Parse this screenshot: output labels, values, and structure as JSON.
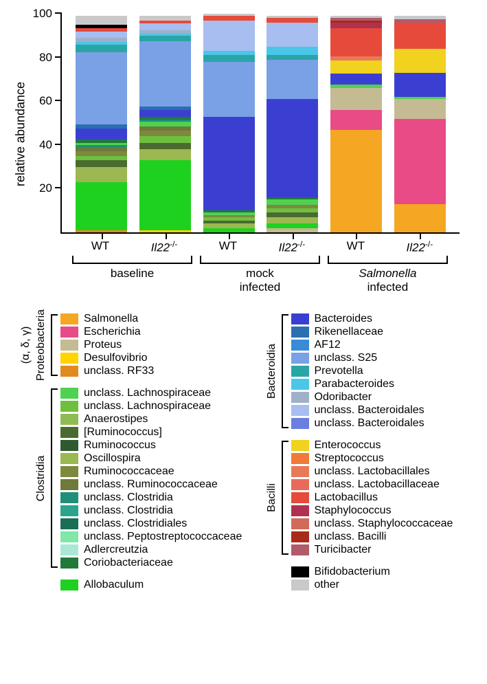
{
  "chart": {
    "type": "stacked-bar",
    "ylabel": "relative abundance",
    "ylim": [
      0,
      100
    ],
    "yticks": [
      20,
      40,
      60,
      80,
      100
    ],
    "background_color": "#ffffff",
    "bar_width_pct": 13.5,
    "axis_color": "#000000",
    "label_fontsize": 18,
    "tick_fontsize": 17,
    "columns": [
      {
        "label_html": "WT",
        "group": "baseline"
      },
      {
        "label_html": "<i>Il22</i><sup>-/-</sup>",
        "group": "baseline"
      },
      {
        "label_html": "WT",
        "group": "mock infected"
      },
      {
        "label_html": "<i>Il22</i><sup>-/-</sup>",
        "group": "mock infected"
      },
      {
        "label_html": "WT",
        "group": "Salmonella infected"
      },
      {
        "label_html": "<i>Il22</i><sup>-/-</sup>",
        "group": "Salmonella infected"
      }
    ],
    "groups": [
      {
        "label_html": "baseline",
        "from": 0,
        "to": 1
      },
      {
        "label_html": "mock<br>infected",
        "from": 2,
        "to": 3
      },
      {
        "label_html": "<i>Salmonella</i><br>infected",
        "from": 4,
        "to": 5
      }
    ],
    "taxa": {
      "Salmonella": "#f5a623",
      "Escherichia": "#e94b86",
      "Proteus": "#c4bb93",
      "Desulfovibrio": "#ffd400",
      "unclass_RF33": "#e38a1e",
      "unclass_Lachnospiraceae1": "#4fd24f",
      "unclass_Lachnospiraceae2": "#6fbf3f",
      "Anaerostipes": "#8fbc52",
      "Ruminococcus_b": "#4a6b2f",
      "Ruminococcus": "#2f5a2f",
      "Oscillospira": "#9bb851",
      "Ruminococcaceae": "#7d8a3e",
      "unclass_Ruminococcaceae": "#6e7a3a",
      "unclass_Clostridia1": "#1f8f7a",
      "unclass_Clostridia2": "#2aa58b",
      "unclass_Clostridiales": "#1a6e55",
      "unclass_Peptostreptococcaceae": "#7fe8a8",
      "Adlercreutzia": "#a8e8d4",
      "Coriobacteriaceae": "#1f7a3a",
      "Allobaculum": "#1fd11f",
      "Bacteroides": "#3b3fd1",
      "Rikenellaceae": "#2a6fb0",
      "AF12": "#3a8bd6",
      "unclass_S25": "#7aa0e6",
      "Prevotella": "#2aa5a5",
      "Parabacteroides": "#4ac6e8",
      "Odoribacter": "#9fb0c9",
      "unclass_Bacteroidales1": "#a8bdf0",
      "unclass_Bacteroidales2": "#6a7fe0",
      "Enterococcus": "#f0d21f",
      "Streptococcus": "#f07a3a",
      "unclass_Lactobacillales": "#e87a5a",
      "unclass_Lactobacillaceae": "#e86a5a",
      "Lactobacillus": "#e64a3a",
      "Staphylococcus": "#b03050",
      "unclass_Staphylococcaceae": "#d16a5a",
      "unclass_Bacilli": "#a82a1a",
      "Turicibacter": "#b05a6a",
      "Bifidobacterium": "#000000",
      "other": "#c9c9c9"
    },
    "stacks": [
      [
        {
          "t": "unclass_RF33",
          "v": 1.0
        },
        {
          "t": "Allobaculum",
          "v": 22.0
        },
        {
          "t": "Oscillospira",
          "v": 7.0
        },
        {
          "t": "Ruminococcus_b",
          "v": 3.0
        },
        {
          "t": "unclass_Lachnospiraceae2",
          "v": 2.0
        },
        {
          "t": "Ruminococcaceae",
          "v": 2.0
        },
        {
          "t": "unclass_Ruminococcaceae",
          "v": 2.0
        },
        {
          "t": "unclass_Clostridia1",
          "v": 1.0
        },
        {
          "t": "unclass_Lachnospiraceae1",
          "v": 1.0
        },
        {
          "t": "Coriobacteriaceae",
          "v": 1.5
        },
        {
          "t": "Bacteroides",
          "v": 5.0
        },
        {
          "t": "Rikenellaceae",
          "v": 2.0
        },
        {
          "t": "unclass_S25",
          "v": 33.0
        },
        {
          "t": "Prevotella",
          "v": 3.5
        },
        {
          "t": "Parabacteroides",
          "v": 1.0
        },
        {
          "t": "Odoribacter",
          "v": 2.0
        },
        {
          "t": "unclass_Bacteroidales1",
          "v": 3.0
        },
        {
          "t": "Lactobacillus",
          "v": 1.5
        },
        {
          "t": "Bifidobacterium",
          "v": 1.5
        },
        {
          "t": "other",
          "v": 4.0
        }
      ],
      [
        {
          "t": "Desulfovibrio",
          "v": 1.0
        },
        {
          "t": "Allobaculum",
          "v": 32.0
        },
        {
          "t": "Oscillospira",
          "v": 5.0
        },
        {
          "t": "Ruminococcus_b",
          "v": 3.0
        },
        {
          "t": "unclass_Lachnospiraceae2",
          "v": 3.0
        },
        {
          "t": "Ruminococcaceae",
          "v": 2.5
        },
        {
          "t": "unclass_Ruminococcaceae",
          "v": 2.0
        },
        {
          "t": "unclass_Lachnospiraceae1",
          "v": 2.0
        },
        {
          "t": "unclass_Clostridia1",
          "v": 1.0
        },
        {
          "t": "Coriobacteriaceae",
          "v": 1.5
        },
        {
          "t": "Bacteroides",
          "v": 3.0
        },
        {
          "t": "Rikenellaceae",
          "v": 1.5
        },
        {
          "t": "unclass_S25",
          "v": 30.0
        },
        {
          "t": "Prevotella",
          "v": 2.5
        },
        {
          "t": "Parabacteroides",
          "v": 1.0
        },
        {
          "t": "Odoribacter",
          "v": 1.5
        },
        {
          "t": "unclass_Bacteroidales1",
          "v": 3.0
        },
        {
          "t": "Lactobacillus",
          "v": 1.5
        },
        {
          "t": "other",
          "v": 2.0
        }
      ],
      [
        {
          "t": "Allobaculum",
          "v": 2.0
        },
        {
          "t": "Oscillospira",
          "v": 2.0
        },
        {
          "t": "Ruminococcus_b",
          "v": 1.5
        },
        {
          "t": "unclass_Lachnospiraceae2",
          "v": 1.5
        },
        {
          "t": "Ruminococcaceae",
          "v": 1.0
        },
        {
          "t": "unclass_Lachnospiraceae1",
          "v": 1.0
        },
        {
          "t": "Coriobacteriaceae",
          "v": 1.0
        },
        {
          "t": "Bacteroides",
          "v": 43.0
        },
        {
          "t": "unclass_S25",
          "v": 25.0
        },
        {
          "t": "Prevotella",
          "v": 3.0
        },
        {
          "t": "Parabacteroides",
          "v": 2.0
        },
        {
          "t": "unclass_Bacteroidales1",
          "v": 14.0
        },
        {
          "t": "Lactobacillus",
          "v": 2.0
        },
        {
          "t": "other",
          "v": 1.0
        }
      ],
      [
        {
          "t": "Proteus",
          "v": 2.0
        },
        {
          "t": "Allobaculum",
          "v": 2.0
        },
        {
          "t": "Oscillospira",
          "v": 3.0
        },
        {
          "t": "Ruminococcus_b",
          "v": 2.0
        },
        {
          "t": "unclass_Lachnospiraceae2",
          "v": 2.0
        },
        {
          "t": "Ruminococcaceae",
          "v": 1.5
        },
        {
          "t": "unclass_Lachnospiraceae1",
          "v": 2.5
        },
        {
          "t": "Coriobacteriaceae",
          "v": 1.0
        },
        {
          "t": "Bacteroides",
          "v": 45.0
        },
        {
          "t": "unclass_S25",
          "v": 18.0
        },
        {
          "t": "Prevotella",
          "v": 2.0
        },
        {
          "t": "Parabacteroides",
          "v": 4.0
        },
        {
          "t": "unclass_Bacteroidales1",
          "v": 11.0
        },
        {
          "t": "Lactobacillus",
          "v": 2.0
        },
        {
          "t": "other",
          "v": 1.0
        }
      ],
      [
        {
          "t": "Salmonella",
          "v": 47.0
        },
        {
          "t": "Escherichia",
          "v": 9.0
        },
        {
          "t": "Proteus",
          "v": 10.0
        },
        {
          "t": "unclass_Lachnospiraceae1",
          "v": 1.5
        },
        {
          "t": "Bacteroides",
          "v": 5.0
        },
        {
          "t": "Enterococcus",
          "v": 6.0
        },
        {
          "t": "unclass_Lactobacillales",
          "v": 2.0
        },
        {
          "t": "Lactobacillus",
          "v": 13.0
        },
        {
          "t": "Staphylococcus",
          "v": 2.5
        },
        {
          "t": "unclass_Bacilli",
          "v": 1.0
        },
        {
          "t": "Turicibacter",
          "v": 1.0
        },
        {
          "t": "other",
          "v": 1.0
        }
      ],
      [
        {
          "t": "Salmonella",
          "v": 13.0
        },
        {
          "t": "Escherichia",
          "v": 39.0
        },
        {
          "t": "Proteus",
          "v": 9.0
        },
        {
          "t": "unclass_Lachnospiraceae1",
          "v": 1.0
        },
        {
          "t": "Bacteroides",
          "v": 11.0
        },
        {
          "t": "Enterococcus",
          "v": 11.0
        },
        {
          "t": "Lactobacillus",
          "v": 12.0
        },
        {
          "t": "Turicibacter",
          "v": 1.5
        },
        {
          "t": "other",
          "v": 1.5
        }
      ]
    ]
  },
  "legend": {
    "left": [
      {
        "title": "Proteobacteria",
        "subtitle": "(α, δ, γ)",
        "items": [
          {
            "t": "Salmonella",
            "label": "Salmonella"
          },
          {
            "t": "Escherichia",
            "label": "Escherichia"
          },
          {
            "t": "Proteus",
            "label": "Proteus"
          },
          {
            "t": "Desulfovibrio",
            "label": "Desulfovibrio"
          },
          {
            "t": "unclass_RF33",
            "label": "unclass. RF33"
          }
        ]
      },
      {
        "title": "Clostridia",
        "items": [
          {
            "t": "unclass_Lachnospiraceae1",
            "label": "unclass. Lachnospiraceae"
          },
          {
            "t": "unclass_Lachnospiraceae2",
            "label": "unclass. Lachnospiraceae"
          },
          {
            "t": "Anaerostipes",
            "label": "Anaerostipes"
          },
          {
            "t": "Ruminococcus_b",
            "label": "[Ruminococcus]"
          },
          {
            "t": "Ruminococcus",
            "label": "Ruminococcus"
          },
          {
            "t": "Oscillospira",
            "label": "Oscillospira"
          },
          {
            "t": "Ruminococcaceae",
            "label": "Ruminococcaceae"
          },
          {
            "t": "unclass_Ruminococcaceae",
            "label": "unclass. Ruminococcaceae"
          },
          {
            "t": "unclass_Clostridia1",
            "label": "unclass. Clostridia"
          },
          {
            "t": "unclass_Clostridia2",
            "label": "unclass. Clostridia"
          },
          {
            "t": "unclass_Clostridiales",
            "label": "unclass. Clostridiales"
          },
          {
            "t": "unclass_Peptostreptococcaceae",
            "label": "unclass. Peptostreptococcaceae"
          },
          {
            "t": "Adlercreutzia",
            "label": "Adlercreutzia"
          },
          {
            "t": "Coriobacteriaceae",
            "label": "Coriobacteriaceae"
          }
        ]
      }
    ],
    "left_standalone": [
      {
        "t": "Allobaculum",
        "label": "Allobaculum"
      }
    ],
    "right": [
      {
        "title": "Bacteroidia",
        "items": [
          {
            "t": "Bacteroides",
            "label": "Bacteroides"
          },
          {
            "t": "Rikenellaceae",
            "label": "Rikenellaceae"
          },
          {
            "t": "AF12",
            "label": "AF12"
          },
          {
            "t": "unclass_S25",
            "label": "unclass. S25"
          },
          {
            "t": "Prevotella",
            "label": "Prevotella"
          },
          {
            "t": "Parabacteroides",
            "label": "Parabacteroides"
          },
          {
            "t": "Odoribacter",
            "label": "Odoribacter"
          },
          {
            "t": "unclass_Bacteroidales1",
            "label": "unclass. Bacteroidales"
          },
          {
            "t": "unclass_Bacteroidales2",
            "label": "unclass. Bacteroidales"
          }
        ]
      },
      {
        "title": "Bacilli",
        "items": [
          {
            "t": "Enterococcus",
            "label": "Enterococcus"
          },
          {
            "t": "Streptococcus",
            "label": "Streptococcus"
          },
          {
            "t": "unclass_Lactobacillales",
            "label": "unclass. Lactobacillales"
          },
          {
            "t": "unclass_Lactobacillaceae",
            "label": "unclass. Lactobacillaceae"
          },
          {
            "t": "Lactobacillus",
            "label": "Lactobacillus"
          },
          {
            "t": "Staphylococcus",
            "label": "Staphylococcus"
          },
          {
            "t": "unclass_Staphylococcaceae",
            "label": "unclass. Staphylococcaceae"
          },
          {
            "t": "unclass_Bacilli",
            "label": "unclass. Bacilli"
          },
          {
            "t": "Turicibacter",
            "label": "Turicibacter"
          }
        ]
      }
    ],
    "right_standalone": [
      {
        "t": "Bifidobacterium",
        "label": "Bifidobacterium"
      },
      {
        "t": "other",
        "label": "other"
      }
    ]
  }
}
